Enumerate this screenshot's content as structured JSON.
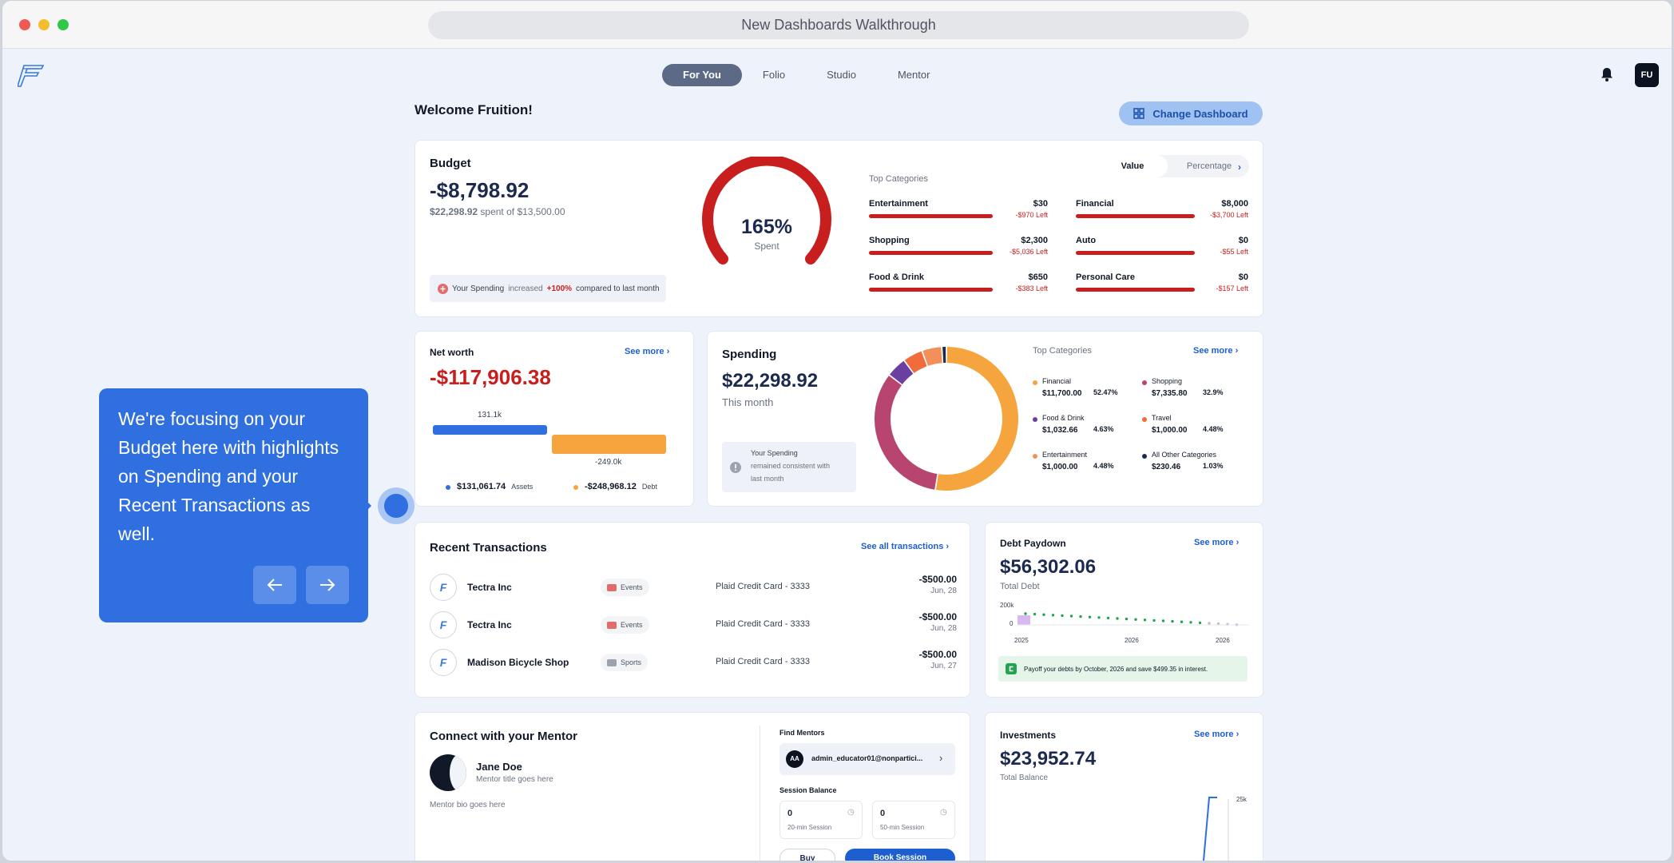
{
  "window": {
    "title": "New Dashboards Walkthrough"
  },
  "nav": {
    "tabs": [
      "For You",
      "Folio",
      "Studio",
      "Mentor"
    ],
    "active": "For You"
  },
  "user": {
    "initials": "FU"
  },
  "header": {
    "welcome": "Welcome Fruition!",
    "change_dashboard": "Change Dashboard"
  },
  "budget": {
    "title": "Budget",
    "amount": "-$8,798.92",
    "spent": "$22,298.92",
    "spent_of": "spent of $13,500.00",
    "gauge_percent": 165,
    "gauge_label": "165%",
    "gauge_sub": "Spent",
    "note_pre": "Your Spending",
    "note_mid": "increased",
    "note_pct": "+100%",
    "note_post": "compared to last month",
    "top_categories_label": "Top Categories",
    "toggle": [
      "Value",
      "Percentage"
    ],
    "categories": [
      {
        "name": "Entertainment",
        "value": "$30",
        "left": "-$970 Left"
      },
      {
        "name": "Financial",
        "value": "$8,000",
        "left": "-$3,700 Left"
      },
      {
        "name": "Shopping",
        "value": "$2,300",
        "left": "-$5,036 Left"
      },
      {
        "name": "Auto",
        "value": "$0",
        "left": "-$55 Left"
      },
      {
        "name": "Food & Drink",
        "value": "$650",
        "left": "-$383 Left"
      },
      {
        "name": "Personal Care",
        "value": "$0",
        "left": "-$157 Left"
      }
    ]
  },
  "networth": {
    "title": "Net worth",
    "see_more": "See more",
    "amount": "-$117,906.38",
    "assets_bar_label": "131.1k",
    "debt_bar_label": "-249.0k",
    "assets_value": "$131,061.74",
    "assets_label": "Assets",
    "debt_value": "-$248,968.12",
    "debt_label": "Debt",
    "colors": {
      "assets": "#2f6fe0",
      "debt": "#f6a43e"
    }
  },
  "spending": {
    "title": "Spending",
    "amount": "$22,298.92",
    "period": "This month",
    "note": "Your Spending",
    "note2": "remained consistent with",
    "note3": "last month",
    "top_categories_label": "Top Categories",
    "see_more": "See more",
    "categories": [
      {
        "name": "Financial",
        "amount": "$11,700.00",
        "pct": "52.47%",
        "value": 52.47,
        "color": "#f6a43e"
      },
      {
        "name": "Shopping",
        "amount": "$7,335.80",
        "pct": "32.9%",
        "value": 32.9,
        "color": "#b8456f"
      },
      {
        "name": "Food & Drink",
        "amount": "$1,032.66",
        "pct": "4.63%",
        "value": 4.63,
        "color": "#6b3fa0"
      },
      {
        "name": "Travel",
        "amount": "$1,000.00",
        "pct": "4.48%",
        "value": 4.48,
        "color": "#f26b3a"
      },
      {
        "name": "Entertainment",
        "amount": "$1,000.00",
        "pct": "4.48%",
        "value": 4.48,
        "color": "#f28f5b"
      },
      {
        "name": "All Other Categories",
        "amount": "$230.46",
        "pct": "1.03%",
        "value": 1.03,
        "color": "#1b2a4e"
      }
    ]
  },
  "transactions": {
    "title": "Recent Transactions",
    "see_all": "See all transactions",
    "rows": [
      {
        "merchant": "Tectra Inc",
        "tag": "Events",
        "account": "Plaid Credit Card - 3333",
        "amount": "-$500.00",
        "date": "Jun, 28"
      },
      {
        "merchant": "Tectra Inc",
        "tag": "Events",
        "account": "Plaid Credit Card - 3333",
        "amount": "-$500.00",
        "date": "Jun, 28"
      },
      {
        "merchant": "Madison Bicycle Shop",
        "tag": "Sports",
        "account": "Plaid Credit Card - 3333",
        "amount": "-$500.00",
        "date": "Jun, 27"
      }
    ]
  },
  "debt": {
    "title": "Debt Paydown",
    "see_more": "See more",
    "amount": "$56,302.06",
    "label": "Total Debt",
    "y_ticks": [
      "200k",
      "0"
    ],
    "x_ticks": [
      "2025",
      "2026",
      "2026"
    ],
    "note": "Payoff your debts by October, 2026 and save $499.35 in interest."
  },
  "mentor": {
    "title": "Connect with your Mentor",
    "name": "Jane Doe",
    "mentor_title": "Mentor title goes here",
    "bio": "Mentor bio goes here",
    "find_label": "Find Mentors",
    "find_initials": "AA",
    "find_email": "admin_educator01@nonpartici...",
    "session_label": "Session Balance",
    "sessions": [
      {
        "count": "0",
        "label": "20-min Session"
      },
      {
        "count": "0",
        "label": "50-min Session"
      }
    ],
    "buy": "Buy",
    "book": "Book Session"
  },
  "investments": {
    "title": "Investments",
    "see_more": "See more",
    "amount": "$23,952.74",
    "label": "Total Balance",
    "y_tick": "25k"
  },
  "tooltip": {
    "text": "We're focusing on your Budget here with highlights on Spending and your Recent Transactions as well."
  }
}
